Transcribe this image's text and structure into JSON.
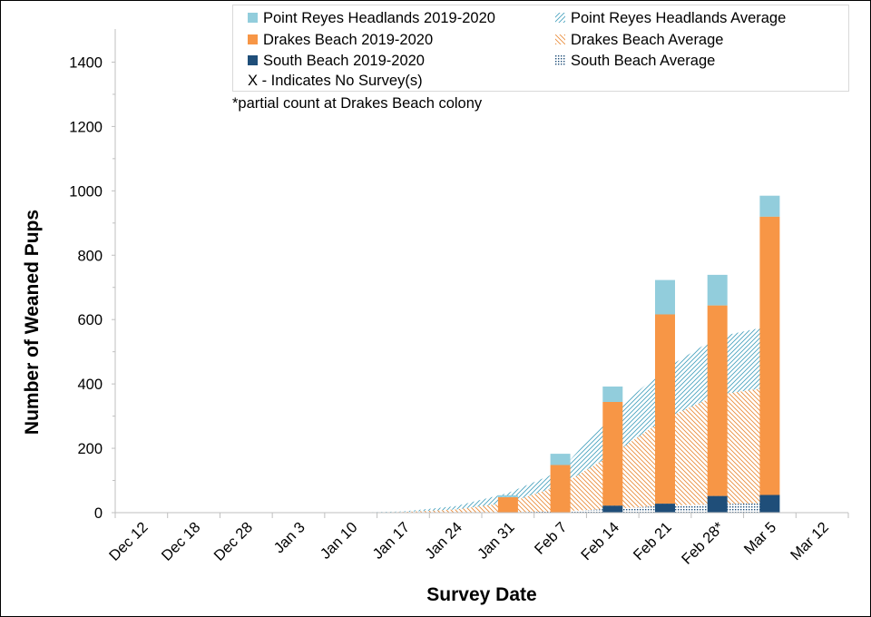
{
  "chart_data": {
    "type": "bar",
    "xlabel": "Survey Date",
    "ylabel": "Number of  Weaned Pups",
    "ylim": [
      0,
      1500
    ],
    "yticks": [
      0,
      200,
      400,
      600,
      800,
      1000,
      1200,
      1400
    ],
    "categories": [
      "Dec 12",
      "Dec 18",
      "Dec 28",
      "Jan 3",
      "Jan 10",
      "Jan 17",
      "Jan 24",
      "Jan 31",
      "Feb 7",
      "Feb 14",
      "Feb 21",
      "Feb 28*",
      "Mar 5",
      "Mar 12"
    ],
    "stacked": true,
    "grid": false,
    "legend_position": "top",
    "series": [
      {
        "name": "South Beach 2019-2020",
        "kind": "bar",
        "color": "#1f4e79",
        "values": [
          0,
          0,
          0,
          0,
          0,
          0,
          0,
          0,
          0,
          22,
          28,
          52,
          55,
          null
        ]
      },
      {
        "name": "Drakes Beach 2019-2020",
        "kind": "bar",
        "color": "#f79646",
        "values": [
          0,
          0,
          0,
          0,
          0,
          0,
          0,
          48,
          148,
          322,
          588,
          592,
          865,
          null
        ]
      },
      {
        "name": "Point Reyes Headlands 2019-2020",
        "kind": "bar",
        "color": "#92cddc",
        "values": [
          0,
          0,
          0,
          0,
          0,
          0,
          0,
          6,
          35,
          48,
          107,
          95,
          65,
          null
        ]
      },
      {
        "name": "South Beach Average",
        "kind": "area",
        "pattern": "dots",
        "color": "#1f4e79",
        "values": [
          0,
          0,
          0,
          0,
          0,
          0,
          0,
          1,
          4,
          12,
          22,
          26,
          30,
          null
        ]
      },
      {
        "name": "Drakes Beach Average",
        "kind": "area",
        "pattern": "diag-right",
        "color": "#e98d3c",
        "values": [
          0,
          0,
          0,
          0,
          0,
          2,
          10,
          30,
          80,
          170,
          270,
          340,
          360,
          null
        ]
      },
      {
        "name": "Point Reyes Headlands Average",
        "kind": "area",
        "pattern": "diag-left",
        "color": "#4aa3c0",
        "values": [
          0,
          0,
          0,
          0,
          0,
          2,
          10,
          30,
          45,
          130,
          155,
          180,
          190,
          null
        ]
      }
    ],
    "annotations": [
      "*partial count at Drakes Beach colony",
      "X - Indicates No Survey(s)"
    ]
  },
  "legend": {
    "items": [
      {
        "label": "Point Reyes Headlands 2019-2020",
        "symbol": "solid",
        "color": "#92cddc"
      },
      {
        "label": "Point Reyes Headlands Average",
        "symbol": "pattern",
        "color": "#4aa3c0"
      },
      {
        "label": "Drakes Beach 2019-2020",
        "symbol": "solid",
        "color": "#f79646"
      },
      {
        "label": "Drakes Beach Average",
        "symbol": "pattern",
        "color": "#e98d3c"
      },
      {
        "label": "South Beach 2019-2020",
        "symbol": "solid",
        "color": "#1f4e79"
      },
      {
        "label": "South Beach Average",
        "symbol": "pattern",
        "color": "#1f4e79"
      }
    ],
    "no_survey_note": "X - Indicates No Survey(s)"
  },
  "note": "*partial count at Drakes Beach colony"
}
